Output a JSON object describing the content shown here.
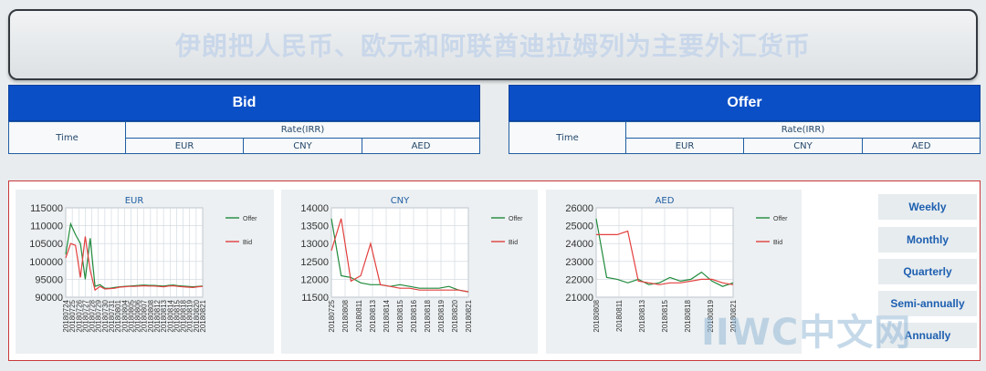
{
  "banner": {
    "title": "伊朗把人民币、欧元和阿联酋迪拉姆列为主要外汇货币"
  },
  "bid_table": {
    "title": "Bid",
    "time_label": "Time",
    "rate_label": "Rate(IRR)",
    "currencies": [
      "EUR",
      "CNY",
      "AED"
    ]
  },
  "offer_table": {
    "title": "Offer",
    "time_label": "Time",
    "rate_label": "Rate(IRR)",
    "currencies": [
      "EUR",
      "CNY",
      "AED"
    ]
  },
  "ranges": [
    "Weekly",
    "Monthly",
    "Quarterly",
    "Semi-annually",
    "Annually"
  ],
  "watermark": "IIWC中文网",
  "colors": {
    "offer": "#1f8a3c",
    "bid": "#e2403e",
    "header": "#0b4fc6",
    "panel_border": "#c9383a"
  },
  "chart_data": [
    {
      "type": "line",
      "title": "EUR",
      "x": [
        "20180724",
        "20180725",
        "20180726",
        "20180727",
        "20180728",
        "20180729",
        "20180730",
        "20180731",
        "20180801",
        "20180802",
        "20180803",
        "20180804",
        "20180805",
        "20180806",
        "20180807",
        "20180808",
        "20180809",
        "20180810",
        "20180811",
        "20180812",
        "20180813",
        "20180814",
        "20180815",
        "20180816",
        "20180817",
        "20180818",
        "20180819",
        "20180820",
        "20180821"
      ],
      "x_tick_labels": [
        "20180724",
        "20180725",
        "20180726",
        "20180727",
        "20180728",
        "20180729",
        "20180730",
        "20180731",
        "20180801",
        "20180804",
        "20180805",
        "20180806",
        "20180807",
        "20180808",
        "20180812",
        "20180813",
        "20180814",
        "20180815",
        "20180818",
        "20180819",
        "20180820",
        "20180821"
      ],
      "ylim": [
        90000,
        115000
      ],
      "yticks": [
        90000,
        95000,
        100000,
        105000,
        110000,
        115000
      ],
      "series": [
        {
          "name": "Offer",
          "values": [
            102000,
            110500,
            107500,
            105000,
            95000,
            106500,
            93000,
            93500,
            92500,
            92500,
            92700,
            92900,
            93000,
            93100,
            93200,
            93300,
            93400,
            93300,
            93300,
            93200,
            93100,
            93300,
            93400,
            93200,
            93100,
            93000,
            92900,
            93000,
            93100
          ]
        },
        {
          "name": "Bid",
          "values": [
            101000,
            105000,
            104500,
            95500,
            107000,
            97500,
            92000,
            93000,
            92300,
            92400,
            92500,
            92800,
            92900,
            93000,
            93000,
            93100,
            93200,
            93100,
            93100,
            93000,
            92900,
            93100,
            93200,
            93000,
            92900,
            92800,
            92700,
            92900,
            93000
          ]
        }
      ]
    },
    {
      "type": "line",
      "title": "CNY",
      "x": [
        "20180725",
        "20180727",
        "20180729",
        "20180731",
        "20180802",
        "20180804",
        "20180806",
        "20180808",
        "20180810",
        "20180812",
        "20180814",
        "20180816",
        "20180818",
        "20180820",
        "20180821"
      ],
      "x_tick_labels": [
        "20180725",
        "20180808",
        "20180811",
        "20180813",
        "20180814",
        "20180815",
        "20180816",
        "20180818",
        "20180819",
        "20180820",
        "20180821"
      ],
      "ylim": [
        11500,
        14000
      ],
      "yticks": [
        11500,
        12000,
        12500,
        13000,
        13500,
        14000
      ],
      "series": [
        {
          "name": "Offer",
          "values": [
            13700,
            12100,
            12050,
            11900,
            11850,
            11850,
            11800,
            11850,
            11800,
            11750,
            11750,
            11750,
            11800,
            11700,
            11650
          ]
        },
        {
          "name": "Bid",
          "values": [
            12800,
            13700,
            11950,
            12100,
            13000,
            11850,
            11800,
            11750,
            11750,
            11700,
            11700,
            11700,
            11700,
            11700,
            11650
          ]
        }
      ]
    },
    {
      "type": "line",
      "title": "AED",
      "x": [
        "20180808",
        "20180809",
        "20180810",
        "20180811",
        "20180812",
        "20180813",
        "20180814",
        "20180815",
        "20180816",
        "20180817",
        "20180818",
        "20180819",
        "20180820",
        "20180821"
      ],
      "x_tick_labels": [
        "20180808",
        "20180811",
        "20180813",
        "20180815",
        "20180818",
        "20180819",
        "20180821"
      ],
      "ylim": [
        21000,
        26000
      ],
      "yticks": [
        21000,
        22000,
        23000,
        24000,
        25000,
        26000
      ],
      "series": [
        {
          "name": "Offer",
          "values": [
            25400,
            22100,
            22000,
            21800,
            22000,
            21700,
            21800,
            22100,
            21900,
            22000,
            22400,
            21900,
            21600,
            21800
          ]
        },
        {
          "name": "Bid",
          "values": [
            24500,
            24500,
            24500,
            24700,
            21900,
            21800,
            21700,
            21800,
            21800,
            21900,
            22000,
            22000,
            21800,
            21700
          ]
        }
      ]
    }
  ]
}
